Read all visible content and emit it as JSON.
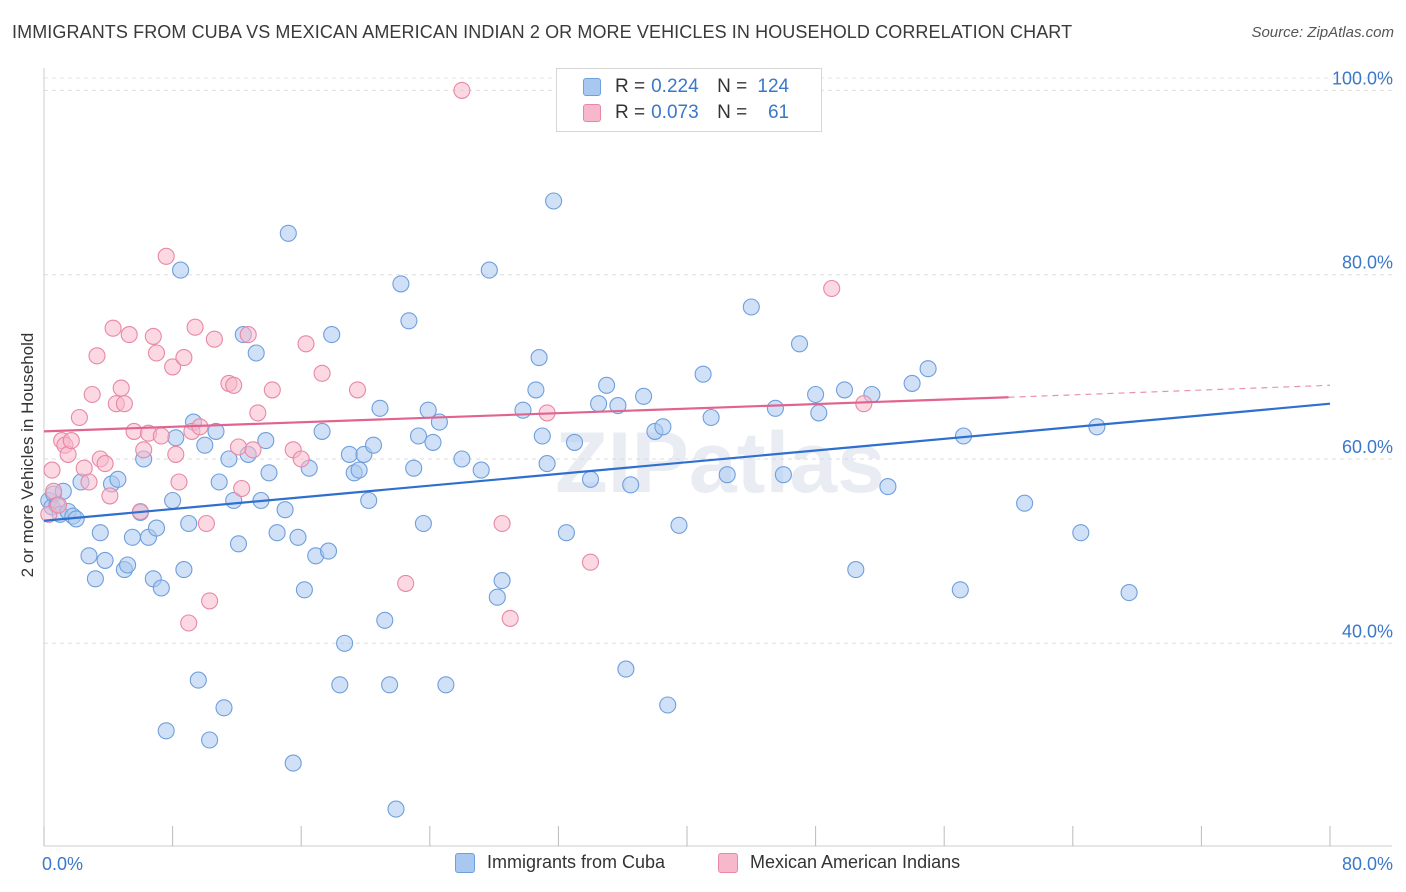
{
  "title": "IMMIGRANTS FROM CUBA VS MEXICAN AMERICAN INDIAN 2 OR MORE VEHICLES IN HOUSEHOLD CORRELATION CHART",
  "source": "Source: ZipAtlas.com",
  "watermark": "ZIPatlas",
  "legend": {
    "r_label": "R =",
    "n_label": "N =",
    "rows": [
      {
        "r": "0.224",
        "n": "124",
        "color": "#a9c8f0",
        "stroke": "#6f9fdc"
      },
      {
        "r": "0.073",
        "n": "61",
        "color": "#f7b8cb",
        "stroke": "#e888a6"
      }
    ]
  },
  "chart_data": {
    "type": "scatter",
    "title": "IMMIGRANTS FROM CUBA VS MEXICAN AMERICAN INDIAN 2 OR MORE VEHICLES IN HOUSEHOLD CORRELATION CHART",
    "xlabel": "",
    "ylabel": "2 or more Vehicles in Household",
    "xlim": [
      0,
      80
    ],
    "ylim": [
      18,
      102
    ],
    "x_tick_labels": [
      "0.0%",
      "80.0%"
    ],
    "y_ticks": [
      40,
      60,
      80,
      100
    ],
    "y_tick_labels": [
      "40.0%",
      "60.0%",
      "80.0%",
      "100.0%"
    ],
    "grid": true,
    "legend_position": "top-center",
    "series": [
      {
        "name": "Immigrants from Cuba",
        "color": "#a9c8f0",
        "edge": "#6f9fdc",
        "trend_color": "#2f6fce",
        "trend": {
          "x": [
            0,
            80
          ],
          "y": [
            53.3,
            66.0
          ]
        },
        "points": [
          [
            0.3,
            55.5
          ],
          [
            0.5,
            54.8
          ],
          [
            0.6,
            56.2
          ],
          [
            0.8,
            55.0
          ],
          [
            1.0,
            54.0
          ],
          [
            1.2,
            56.5
          ],
          [
            1.5,
            54.3
          ],
          [
            1.8,
            53.8
          ],
          [
            2.0,
            53.5
          ],
          [
            2.3,
            57.5
          ],
          [
            2.8,
            49.5
          ],
          [
            3.2,
            47.0
          ],
          [
            3.5,
            52.0
          ],
          [
            3.8,
            49.0
          ],
          [
            4.2,
            57.3
          ],
          [
            4.6,
            57.8
          ],
          [
            5.0,
            48.0
          ],
          [
            5.2,
            48.5
          ],
          [
            5.5,
            51.5
          ],
          [
            6.0,
            54.2
          ],
          [
            6.2,
            60.0
          ],
          [
            6.5,
            51.5
          ],
          [
            6.8,
            47.0
          ],
          [
            7.0,
            52.5
          ],
          [
            7.3,
            46.0
          ],
          [
            7.6,
            30.5
          ],
          [
            8.0,
            55.5
          ],
          [
            8.2,
            62.3
          ],
          [
            8.5,
            80.5
          ],
          [
            8.7,
            48.0
          ],
          [
            9.0,
            53.0
          ],
          [
            9.3,
            64.0
          ],
          [
            9.6,
            36.0
          ],
          [
            10.0,
            61.5
          ],
          [
            10.3,
            29.5
          ],
          [
            10.7,
            63.0
          ],
          [
            10.9,
            57.5
          ],
          [
            11.2,
            33.0
          ],
          [
            11.5,
            60.0
          ],
          [
            11.8,
            55.5
          ],
          [
            12.1,
            50.8
          ],
          [
            12.4,
            73.5
          ],
          [
            12.7,
            60.5
          ],
          [
            13.2,
            71.5
          ],
          [
            13.5,
            55.5
          ],
          [
            13.8,
            62.0
          ],
          [
            14.0,
            58.5
          ],
          [
            14.5,
            52.0
          ],
          [
            15.0,
            54.5
          ],
          [
            15.2,
            84.5
          ],
          [
            15.5,
            27.0
          ],
          [
            15.8,
            51.5
          ],
          [
            16.2,
            45.8
          ],
          [
            16.5,
            59.0
          ],
          [
            16.9,
            49.5
          ],
          [
            17.3,
            63.0
          ],
          [
            17.7,
            50.0
          ],
          [
            17.9,
            73.5
          ],
          [
            18.4,
            35.5
          ],
          [
            18.7,
            40.0
          ],
          [
            19.0,
            60.5
          ],
          [
            19.3,
            58.5
          ],
          [
            19.6,
            58.8
          ],
          [
            19.9,
            60.5
          ],
          [
            20.2,
            55.5
          ],
          [
            20.5,
            61.5
          ],
          [
            20.9,
            65.5
          ],
          [
            21.2,
            42.5
          ],
          [
            21.5,
            35.5
          ],
          [
            21.9,
            22.0
          ],
          [
            22.2,
            79.0
          ],
          [
            22.7,
            75.0
          ],
          [
            23.0,
            59.0
          ],
          [
            23.3,
            62.5
          ],
          [
            23.6,
            53.0
          ],
          [
            23.9,
            65.3
          ],
          [
            24.2,
            61.8
          ],
          [
            24.6,
            64.0
          ],
          [
            25.0,
            35.5
          ],
          [
            26.0,
            60.0
          ],
          [
            27.2,
            58.8
          ],
          [
            27.7,
            80.5
          ],
          [
            28.2,
            45.0
          ],
          [
            28.5,
            46.8
          ],
          [
            29.8,
            65.3
          ],
          [
            30.6,
            67.5
          ],
          [
            30.8,
            71.0
          ],
          [
            31.0,
            62.5
          ],
          [
            31.3,
            59.5
          ],
          [
            31.7,
            88.0
          ],
          [
            32.5,
            52.0
          ],
          [
            33.0,
            61.8
          ],
          [
            34.0,
            57.8
          ],
          [
            34.5,
            66.0
          ],
          [
            35.0,
            68.0
          ],
          [
            35.7,
            65.8
          ],
          [
            36.2,
            37.2
          ],
          [
            36.5,
            57.2
          ],
          [
            37.3,
            66.8
          ],
          [
            38.0,
            63.0
          ],
          [
            38.5,
            63.5
          ],
          [
            38.8,
            33.3
          ],
          [
            39.5,
            52.8
          ],
          [
            41.0,
            69.2
          ],
          [
            41.5,
            64.5
          ],
          [
            42.5,
            58.3
          ],
          [
            44.0,
            76.5
          ],
          [
            45.5,
            65.5
          ],
          [
            46.0,
            58.3
          ],
          [
            47.0,
            72.5
          ],
          [
            48.0,
            67.0
          ],
          [
            48.2,
            65.0
          ],
          [
            49.8,
            67.5
          ],
          [
            50.5,
            48.0
          ],
          [
            51.5,
            67.0
          ],
          [
            52.5,
            57.0
          ],
          [
            54.0,
            68.2
          ],
          [
            55.0,
            69.8
          ],
          [
            57.0,
            45.8
          ],
          [
            57.2,
            62.5
          ],
          [
            61.0,
            55.2
          ],
          [
            64.5,
            52.0
          ],
          [
            65.5,
            63.5
          ],
          [
            67.5,
            45.5
          ]
        ]
      },
      {
        "name": "Mexican American Indians",
        "color": "#f7b8cb",
        "edge": "#e888a6",
        "trend_color": "#e0648f",
        "trend": {
          "x": [
            0,
            60
          ],
          "y": [
            63.0,
            66.7
          ]
        },
        "trend_dashed": {
          "x": [
            60,
            80
          ],
          "y": [
            66.7,
            68.0
          ]
        },
        "points": [
          [
            0.3,
            54.0
          ],
          [
            0.5,
            58.8
          ],
          [
            0.6,
            56.5
          ],
          [
            0.9,
            55.0
          ],
          [
            1.1,
            62.0
          ],
          [
            1.3,
            61.5
          ],
          [
            1.5,
            60.5
          ],
          [
            1.7,
            62.0
          ],
          [
            2.2,
            64.5
          ],
          [
            2.5,
            59.0
          ],
          [
            2.8,
            57.5
          ],
          [
            3.0,
            67.0
          ],
          [
            3.3,
            71.2
          ],
          [
            3.5,
            60.0
          ],
          [
            3.8,
            59.5
          ],
          [
            4.1,
            56.0
          ],
          [
            4.3,
            74.2
          ],
          [
            4.5,
            66.0
          ],
          [
            4.8,
            67.7
          ],
          [
            5.0,
            66.0
          ],
          [
            5.3,
            73.5
          ],
          [
            5.6,
            63.0
          ],
          [
            6.0,
            54.3
          ],
          [
            6.2,
            61.0
          ],
          [
            6.5,
            62.8
          ],
          [
            6.8,
            73.3
          ],
          [
            7.0,
            71.5
          ],
          [
            7.3,
            62.5
          ],
          [
            7.6,
            82.0
          ],
          [
            8.0,
            70.0
          ],
          [
            8.2,
            60.5
          ],
          [
            8.4,
            57.5
          ],
          [
            8.7,
            71.0
          ],
          [
            9.0,
            42.2
          ],
          [
            9.2,
            63.0
          ],
          [
            9.4,
            74.3
          ],
          [
            9.7,
            63.5
          ],
          [
            10.1,
            53.0
          ],
          [
            10.3,
            44.6
          ],
          [
            10.6,
            73.0
          ],
          [
            11.5,
            68.2
          ],
          [
            11.8,
            68.0
          ],
          [
            12.1,
            61.3
          ],
          [
            12.3,
            56.8
          ],
          [
            12.7,
            73.5
          ],
          [
            13.0,
            61.0
          ],
          [
            13.3,
            65.0
          ],
          [
            14.2,
            67.5
          ],
          [
            15.5,
            61.0
          ],
          [
            16.0,
            60.0
          ],
          [
            16.3,
            72.5
          ],
          [
            17.3,
            69.3
          ],
          [
            19.5,
            67.5
          ],
          [
            22.5,
            46.5
          ],
          [
            26.0,
            100.0
          ],
          [
            28.5,
            53.0
          ],
          [
            29.0,
            42.7
          ],
          [
            31.3,
            65.0
          ],
          [
            34.0,
            48.8
          ],
          [
            49.0,
            78.5
          ],
          [
            51.0,
            66.0
          ]
        ]
      }
    ]
  }
}
